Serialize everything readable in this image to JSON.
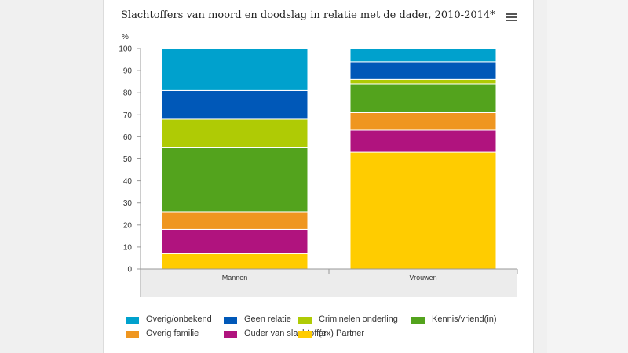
{
  "chart_data": {
    "type": "bar",
    "stacked": true,
    "title": "Slachtoffers van moord en doodslag in relatie met de dader, 2010-2014*",
    "ylabel": "%",
    "ylim": [
      0,
      100
    ],
    "yticks": [
      "0",
      "10",
      "20",
      "30",
      "40",
      "50",
      "60",
      "70",
      "80",
      "90",
      "100"
    ],
    "categories": [
      "Mannen",
      "Vrouwen"
    ],
    "series": [
      {
        "name": "(ex) Partner",
        "color": "#ffcc00",
        "values": [
          7,
          53
        ]
      },
      {
        "name": "Ouder van slachtoffer",
        "color": "#b0137e",
        "values": [
          11,
          10
        ]
      },
      {
        "name": "Overig familie",
        "color": "#ef9620",
        "values": [
          8,
          8
        ]
      },
      {
        "name": "Kennis/vriend(in)",
        "color": "#53a31d",
        "values": [
          29,
          13
        ]
      },
      {
        "name": "Criminelen onderling",
        "color": "#afcb05",
        "values": [
          13,
          2
        ]
      },
      {
        "name": "Geen relatie",
        "color": "#0058b8",
        "values": [
          13,
          8
        ]
      },
      {
        "name": "Overig/onbekend",
        "color": "#00a1cd",
        "values": [
          19,
          6
        ]
      }
    ],
    "legend_order": [
      "Overig/onbekend",
      "Geen relatie",
      "Criminelen onderling",
      "Kennis/vriend(in)",
      "Overig familie",
      "Ouder van slachtoffer",
      "(ex) Partner"
    ],
    "legend_position": "bottom",
    "grid": false
  },
  "ui": {
    "menu_icon": "hamburger-menu-icon"
  }
}
